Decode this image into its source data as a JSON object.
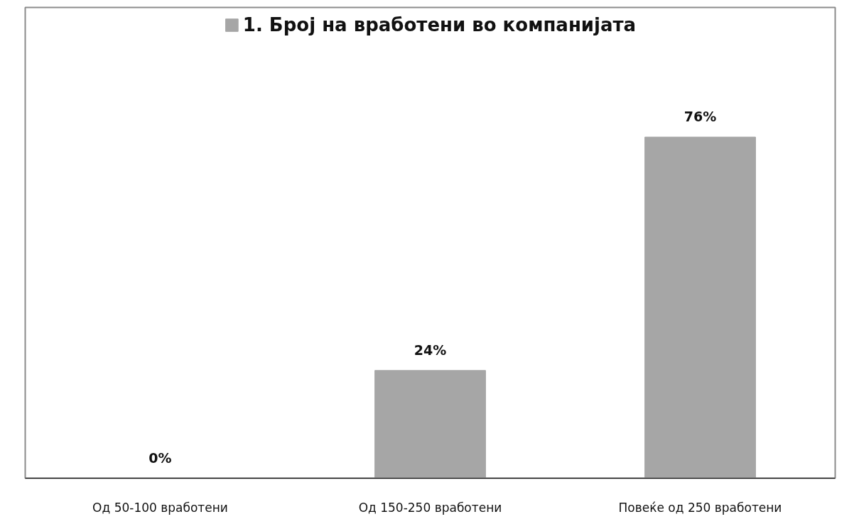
{
  "chart_data": {
    "type": "bar",
    "categories": [
      "Од 50-100 вработени",
      "Од 150-250 вработени",
      "Повеќе од 250 вработени"
    ],
    "series": [
      {
        "name": "1. Број на вработени во компанијата",
        "color": "#a6a6a6",
        "values": [
          0,
          24,
          76
        ],
        "value_labels": [
          "0%",
          "24%",
          "76%"
        ]
      }
    ],
    "legend": "top",
    "grid": false
  }
}
